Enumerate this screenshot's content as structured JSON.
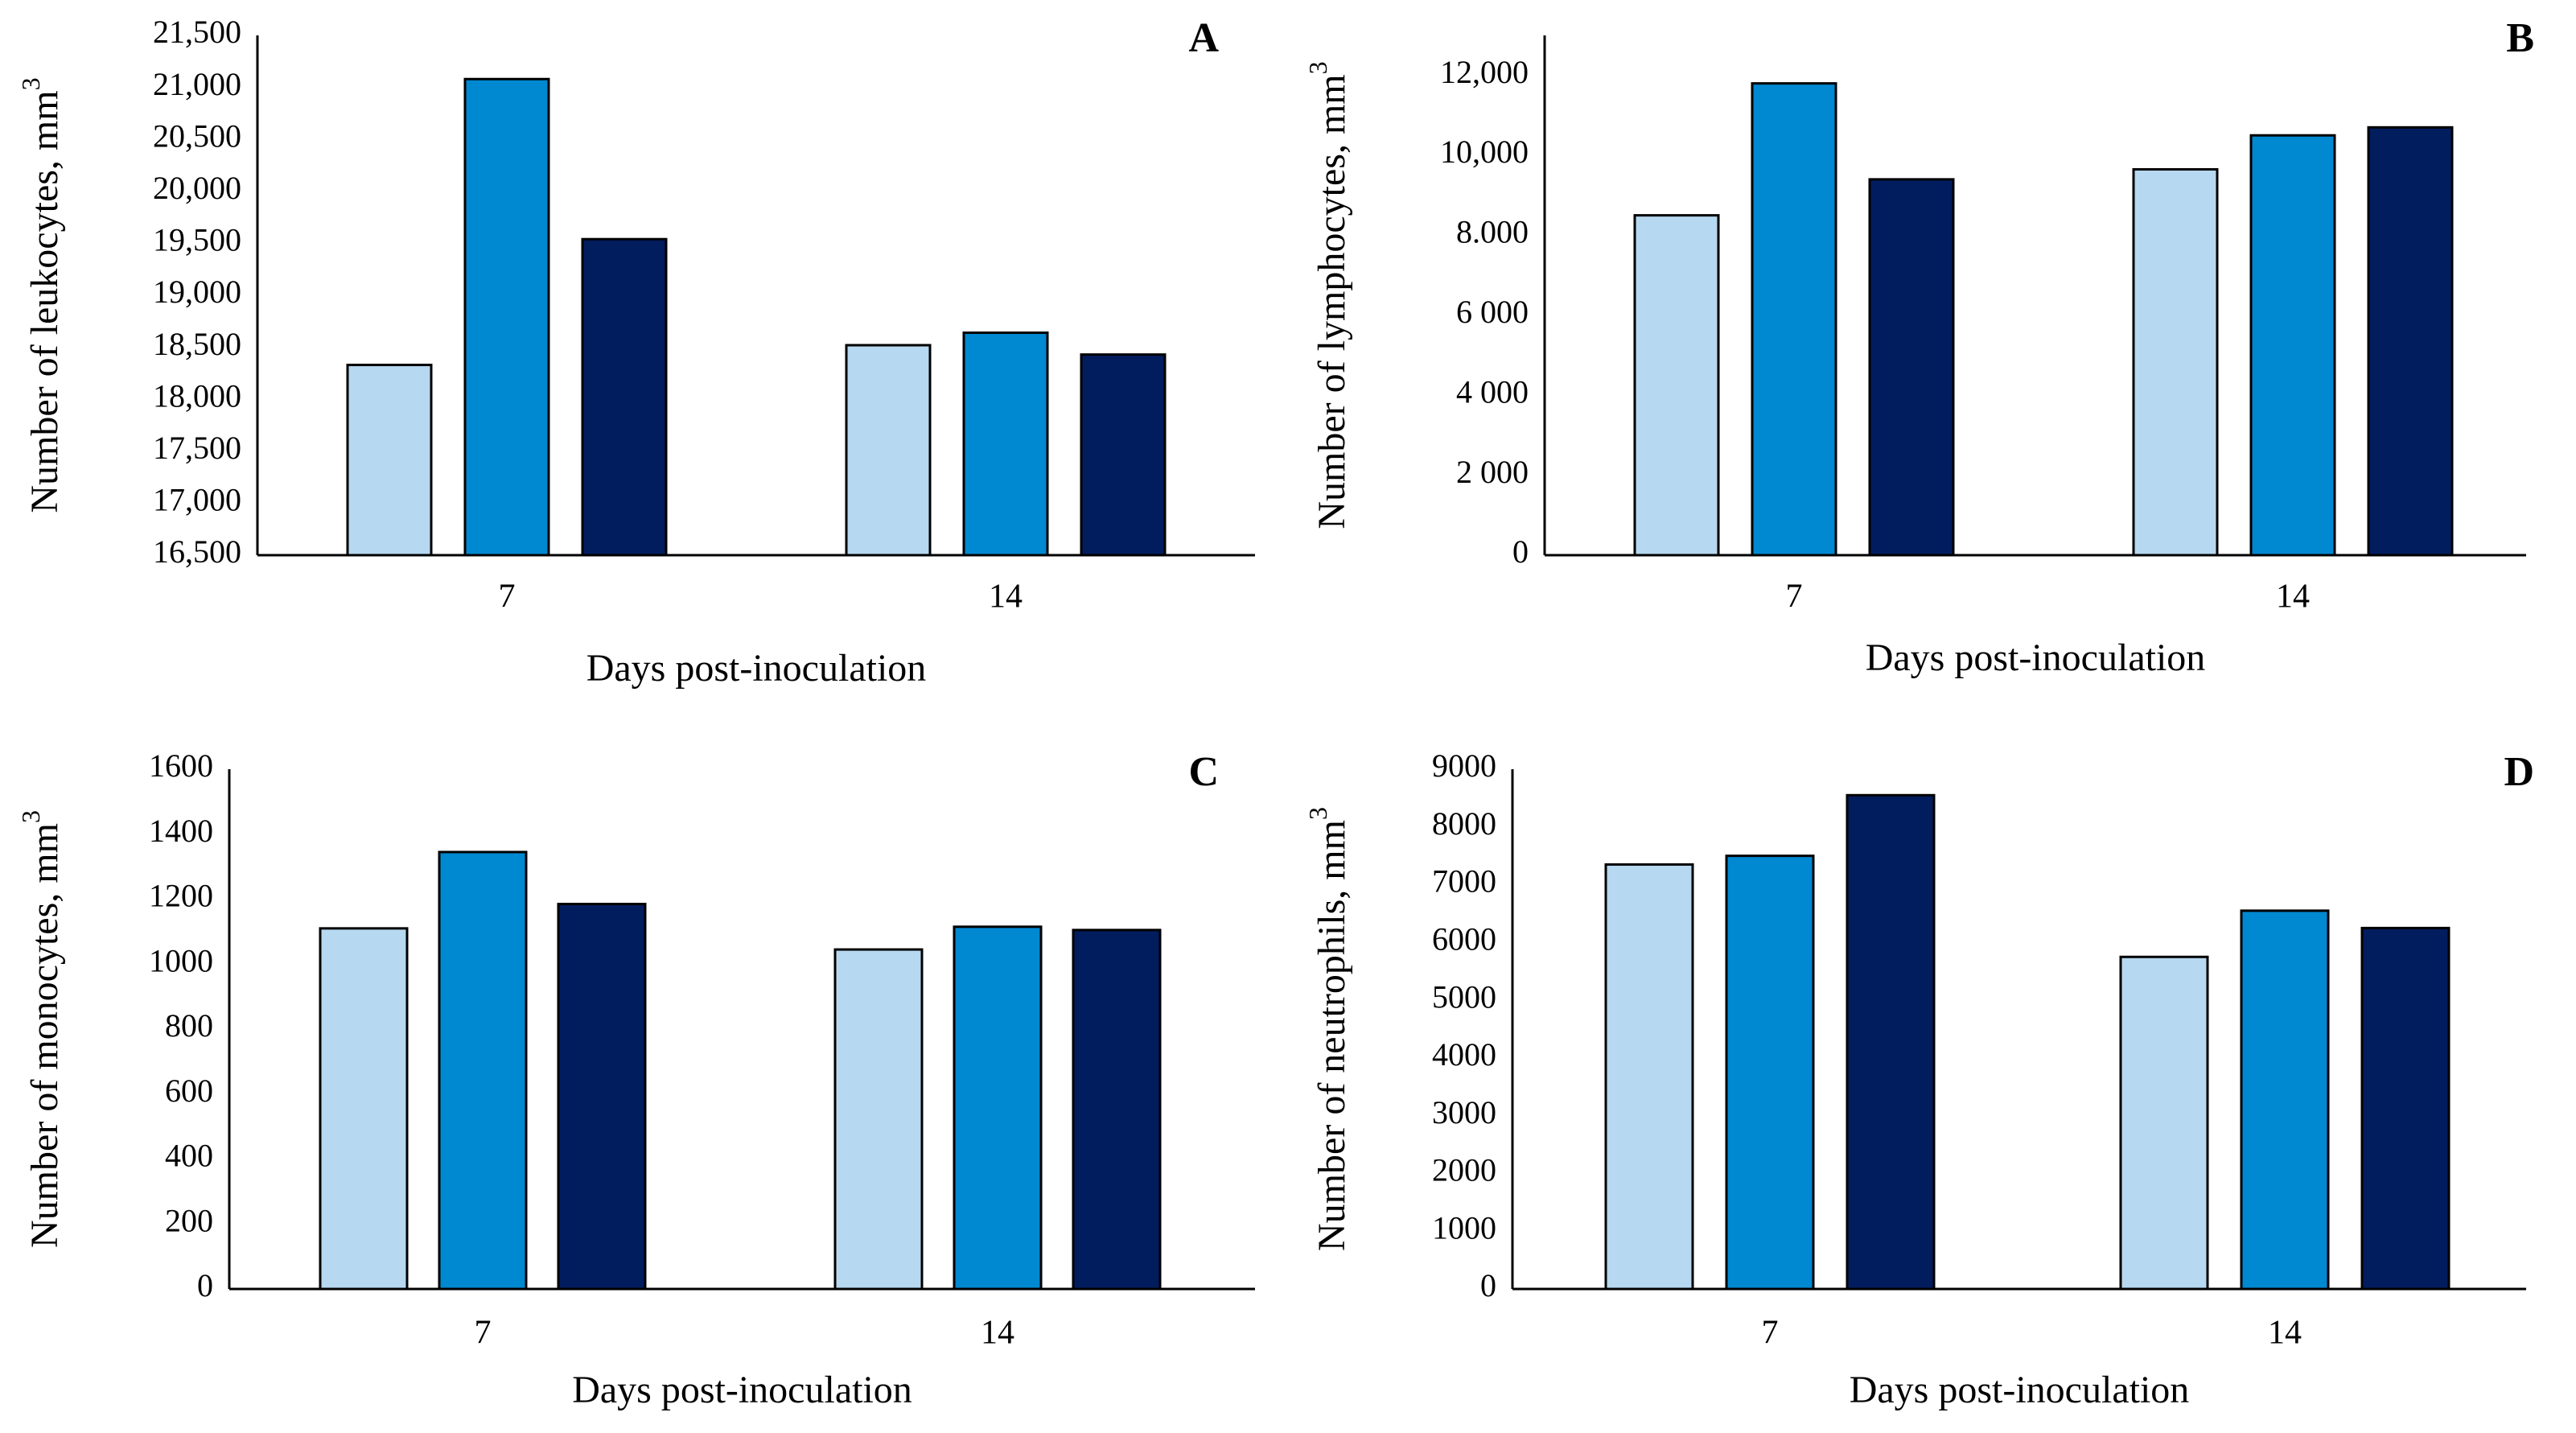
{
  "colors": {
    "series": [
      "#b6d8f0",
      "#0088d1",
      "#021d5e"
    ],
    "bar_outline": "#000000",
    "axis": "#000000",
    "text": "#000000"
  },
  "chart_data": [
    {
      "panel": "A",
      "type": "bar",
      "title": "",
      "xlabel": "Days post-inoculation",
      "ylabel": "Number of leukocytes, mm",
      "ylabel_superscript": "3",
      "categories": [
        "7",
        "14"
      ],
      "ylim": [
        16500,
        21500
      ],
      "yticks": [
        16500,
        17000,
        17500,
        18000,
        18500,
        19000,
        19500,
        20000,
        20500,
        21000,
        21500
      ],
      "ytick_labels": [
        "16,500",
        "17,000",
        "17,500",
        "18,000",
        "18,500",
        "19,000",
        "19,500",
        "20,000",
        "20,500",
        "21,000",
        "21,500"
      ],
      "series": [
        {
          "name": "",
          "values": [
            18330,
            18520
          ]
        },
        {
          "name": "",
          "values": [
            21080,
            18640
          ]
        },
        {
          "name": "",
          "values": [
            19540,
            18430
          ]
        }
      ]
    },
    {
      "panel": "B",
      "type": "bar",
      "title": "",
      "xlabel": "Days post-inoculation",
      "ylabel": "Number of lymphocytes, mm",
      "ylabel_superscript": "3",
      "categories": [
        "7",
        "14"
      ],
      "ylim": [
        0,
        13000
      ],
      "yticks": [
        0,
        2000,
        4000,
        6000,
        8000,
        10000,
        12000
      ],
      "ytick_labels": [
        "0",
        "2 000",
        "4 000",
        "6 000",
        "8.000",
        "10,000",
        "12,000"
      ],
      "series": [
        {
          "name": "",
          "values": [
            8500,
            9650
          ]
        },
        {
          "name": "",
          "values": [
            11800,
            10500
          ]
        },
        {
          "name": "",
          "values": [
            9400,
            10700
          ]
        }
      ]
    },
    {
      "panel": "C",
      "type": "bar",
      "title": "",
      "xlabel": "Days post-inoculation",
      "ylabel": "Number of monocytes, mm",
      "ylabel_superscript": "3",
      "categories": [
        "7",
        "14"
      ],
      "ylim": [
        0,
        1600
      ],
      "yticks": [
        0,
        200,
        400,
        600,
        800,
        1000,
        1200,
        1400,
        1600
      ],
      "ytick_labels": [
        "0",
        "200",
        "400",
        "600",
        "800",
        "1000",
        "1200",
        "1400",
        "1600"
      ],
      "series": [
        {
          "name": "",
          "values": [
            1110,
            1045
          ]
        },
        {
          "name": "",
          "values": [
            1345,
            1115
          ]
        },
        {
          "name": "",
          "values": [
            1185,
            1105
          ]
        }
      ]
    },
    {
      "panel": "D",
      "type": "bar",
      "title": "",
      "xlabel": "Days post-inoculation",
      "ylabel": "Number of neutrophils, mm",
      "ylabel_superscript": "3",
      "categories": [
        "7",
        "14"
      ],
      "ylim": [
        0,
        9000
      ],
      "yticks": [
        0,
        1000,
        2000,
        3000,
        4000,
        5000,
        6000,
        7000,
        8000,
        9000
      ],
      "ytick_labels": [
        "0",
        "1000",
        "2000",
        "3000",
        "4000",
        "5000",
        "6000",
        "7000",
        "8000",
        "9000"
      ],
      "series": [
        {
          "name": "",
          "values": [
            7350,
            5750
          ]
        },
        {
          "name": "",
          "values": [
            7500,
            6550
          ]
        },
        {
          "name": "",
          "values": [
            8550,
            6250
          ]
        }
      ]
    }
  ]
}
